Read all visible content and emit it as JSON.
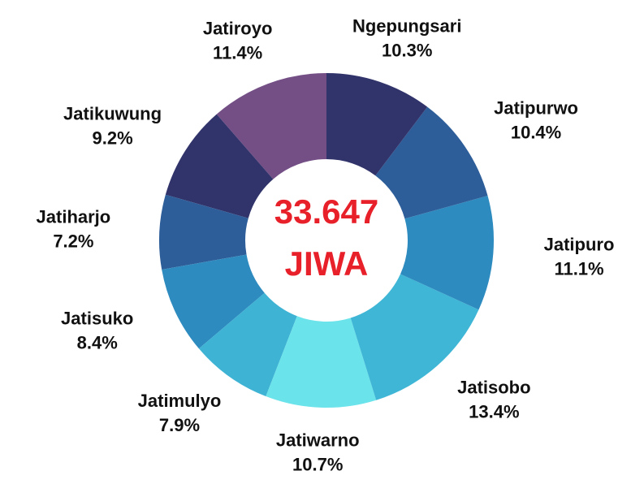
{
  "chart_data": {
    "type": "donut",
    "center_text": [
      "33.647",
      "JIWA"
    ],
    "categories": [
      "Ngepungsari",
      "Jatipurwo",
      "Jatipuro",
      "Jatisobo",
      "Jatiwarno",
      "Jatimulyo",
      "Jatisuko",
      "Jatiharjo",
      "Jatikuwung",
      "Jatiroyo"
    ],
    "values": [
      10.3,
      10.4,
      11.1,
      13.4,
      10.7,
      7.9,
      8.4,
      7.2,
      9.2,
      11.4
    ],
    "value_labels": [
      "10.3%",
      "10.4%",
      "11.1%",
      "13.4%",
      "10.7%",
      "7.9%",
      "8.4%",
      "7.2%",
      "9.2%",
      "11.4%"
    ],
    "colors": [
      "#31336b",
      "#2e5e99",
      "#2e8bbf",
      "#3fb6d6",
      "#6be3ea",
      "#3eb3d4",
      "#2e8bbf",
      "#2e5e99",
      "#31336b",
      "#734f86"
    ],
    "center_color": "#e8202a"
  }
}
